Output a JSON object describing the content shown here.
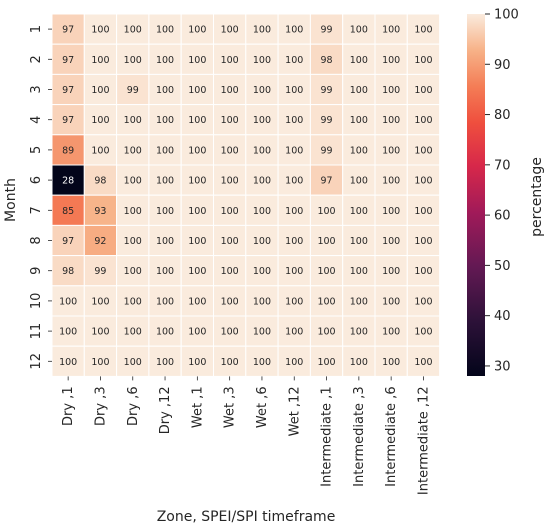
{
  "chart_data": {
    "type": "heatmap",
    "xlabel": "Zone, SPEI/SPI timeframe",
    "ylabel": "Month",
    "colorbar_label": "percentage",
    "columns": [
      "Dry ,1",
      "Dry ,3",
      "Dry ,6",
      "Dry ,12",
      "Wet ,1",
      "Wet ,3",
      "Wet ,6",
      "Wet ,12",
      "Intermediate ,1",
      "Intermediate ,3",
      "Intermediate ,6",
      "Intermediate ,12"
    ],
    "rows": [
      "1",
      "2",
      "3",
      "4",
      "5",
      "6",
      "7",
      "8",
      "9",
      "10",
      "11",
      "12"
    ],
    "values": [
      [
        97,
        100,
        100,
        100,
        100,
        100,
        100,
        100,
        99,
        100,
        100,
        100
      ],
      [
        97,
        100,
        100,
        100,
        100,
        100,
        100,
        100,
        98,
        100,
        100,
        100
      ],
      [
        97,
        100,
        99,
        100,
        100,
        100,
        100,
        100,
        99,
        100,
        100,
        100
      ],
      [
        97,
        100,
        100,
        100,
        100,
        100,
        100,
        100,
        99,
        100,
        100,
        100
      ],
      [
        89,
        100,
        100,
        100,
        100,
        100,
        100,
        100,
        99,
        100,
        100,
        100
      ],
      [
        28,
        98,
        100,
        100,
        100,
        100,
        100,
        100,
        97,
        100,
        100,
        100
      ],
      [
        85,
        93,
        100,
        100,
        100,
        100,
        100,
        100,
        100,
        100,
        100,
        100
      ],
      [
        97,
        92,
        100,
        100,
        100,
        100,
        100,
        100,
        100,
        100,
        100,
        100
      ],
      [
        98,
        99,
        100,
        100,
        100,
        100,
        100,
        100,
        100,
        100,
        100,
        100
      ],
      [
        100,
        100,
        100,
        100,
        100,
        100,
        100,
        100,
        100,
        100,
        100,
        100
      ],
      [
        100,
        100,
        100,
        100,
        100,
        100,
        100,
        100,
        100,
        100,
        100,
        100
      ],
      [
        100,
        100,
        100,
        100,
        100,
        100,
        100,
        100,
        100,
        100,
        100,
        100
      ]
    ],
    "colorbar_range": [
      28,
      100
    ],
    "colorbar_ticks": [
      30,
      40,
      50,
      60,
      70,
      80,
      90,
      100
    ],
    "colormap": "rocket",
    "cell_border_color": "#ffffff"
  }
}
